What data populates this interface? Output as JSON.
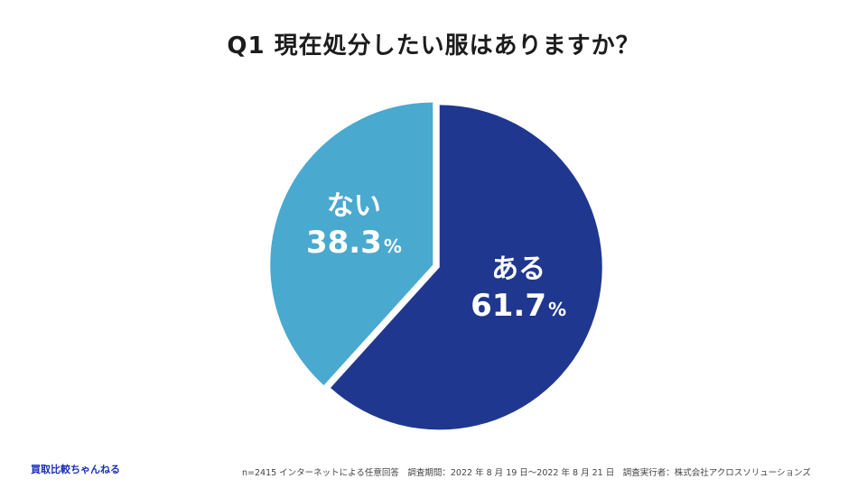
{
  "title": "Q1 現在処分したい服はありますか？",
  "chart_data": {
    "type": "pie",
    "title": "Q1 現在処分したい服はありますか？",
    "slices": [
      {
        "label": "ある",
        "value": 61.7,
        "value_text": "61.7",
        "unit": "%",
        "color": "#1f378f"
      },
      {
        "label": "ない",
        "value": 38.3,
        "value_text": "38.3",
        "unit": "%",
        "color": "#49a9cf"
      }
    ],
    "start_angle": "12 o'clock, clockwise",
    "exploded": true
  },
  "brand": "買取比較ちゃんねる",
  "footnote": "n=2415 インターネットによる任意回答　調査期間：2022 年 8 月 19 日〜2022 年 8 月 21 日　調査実行者：株式会社アクロスソリューションズ"
}
